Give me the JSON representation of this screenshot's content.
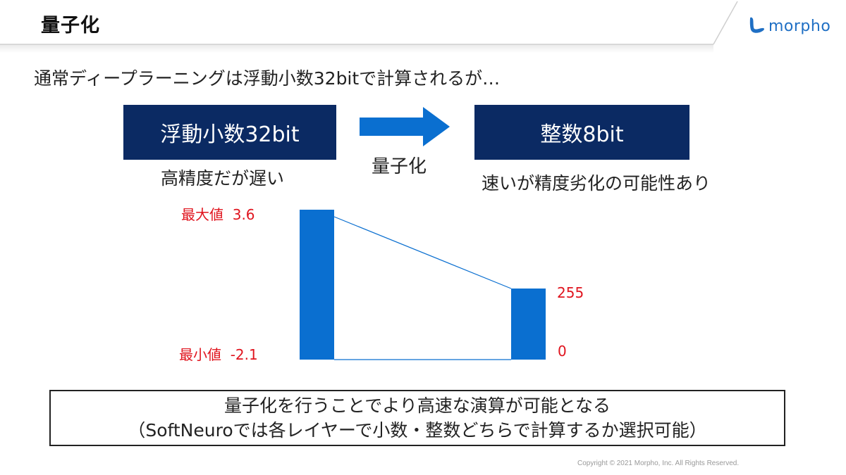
{
  "header": {
    "title": "量子化",
    "logo_text": "morpho",
    "logo_icon": "morpho-logo-icon"
  },
  "lead_text": "通常ディープラーニングは浮動小数32bitで計算されるが…",
  "flow": {
    "left_box": "浮動小数32bit",
    "right_box": "整数8bit",
    "arrow_label": "量子化",
    "left_caption": "高精度だが遅い",
    "right_caption": "速いが精度劣化の可能性あり"
  },
  "range_diagram": {
    "float_max_label": "最大値",
    "float_max_value": "3.6",
    "float_min_label": "最小値",
    "float_min_value": "-2.1",
    "int_max_value": "255",
    "int_min_value": "0"
  },
  "summary": {
    "line1": "量子化を行うことでより高速な演算が可能となる",
    "line2": "（SoftNeuroでは各レイヤーで小数・整数どちらで計算するか選択可能）"
  },
  "footer": {
    "copyright": "Copyright © 2021 Morpho, Inc. All Rights Reserved."
  },
  "colors": {
    "box_navy": "#0b2a63",
    "bar_blue": "#0a6fd0",
    "label_red": "#e0141e",
    "brand_blue": "#1f6fc4"
  }
}
